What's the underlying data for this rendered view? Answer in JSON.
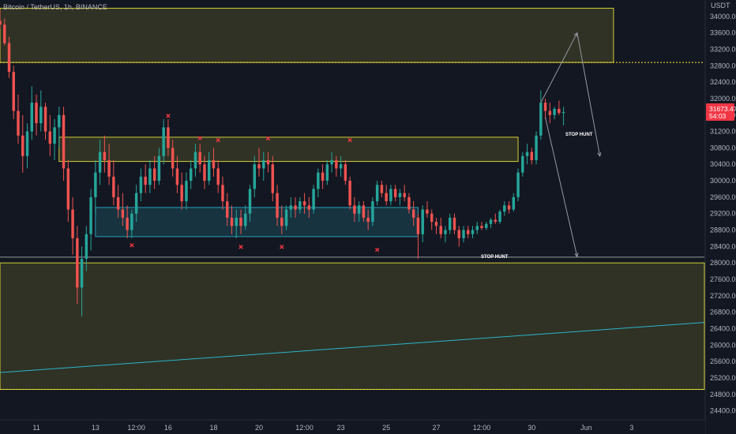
{
  "header": {
    "symbol_title": "Bitcoin / TetherUS, 1h, BINANCE",
    "currency": "USDT"
  },
  "price_badge": {
    "price": "31673.47",
    "countdown": "54:03",
    "color": "#f23645"
  },
  "colors": {
    "background": "#131722",
    "bull": "#26a69a",
    "bear": "#ef5350",
    "yellow_zone": "#f5eb3b",
    "cyan_zone": "#2ab5cc",
    "marker": "#f23645",
    "dashed_line": "#ffeb3b",
    "trendline": "#2ab5cc",
    "projection": "#9598a1",
    "axis_text": "#b2b5be"
  },
  "annotations": {
    "stop_hunt_top": "STOP HUNT",
    "stop_hunt_bottom": "STOP HUNT"
  },
  "chart_data": {
    "type": "candlestick",
    "title": "Bitcoin / TetherUS, 1h, BINANCE",
    "y_axis": {
      "unit": "USDT",
      "ticks": [
        34000,
        33600,
        33200,
        32800,
        32400,
        32000,
        31600,
        31200,
        30800,
        30400,
        30000,
        29600,
        29200,
        28800,
        28400,
        28000,
        27600,
        27200,
        26800,
        26400,
        26000,
        25600,
        25200,
        24800,
        24400
      ],
      "tick_labels": [
        "34000.00",
        "33600.00",
        "33200.00",
        "32800.00",
        "32400.00",
        "32000.00",
        "31600.00",
        "31200.00",
        "30800.00",
        "30400.00",
        "30000.00",
        "29600.00",
        "29200.00",
        "28800.00",
        "28400.00",
        "28000.00",
        "27600.00",
        "27200.00",
        "26800.00",
        "26400.00",
        "26000.00",
        "25600.00",
        "25200.00",
        "24800.00",
        "24400.00"
      ],
      "range": [
        24200,
        34400
      ]
    },
    "x_axis": {
      "tick_labels": [
        "11",
        "13",
        "12:00",
        "16",
        "18",
        "20",
        "12:00",
        "23",
        "25",
        "27",
        "12:00",
        "30",
        "Jun",
        "3"
      ],
      "ticks_t": [
        8,
        21,
        30,
        37,
        47,
        57,
        67,
        75,
        85,
        96,
        106,
        117,
        129,
        139
      ],
      "range_t": [
        0,
        155
      ]
    },
    "last_price": 31673.47,
    "zones": [
      {
        "kind": "yellow",
        "t0": 0,
        "t1": 135,
        "p_low": 32880,
        "p_high": 34200
      },
      {
        "kind": "yellow",
        "t0": 13,
        "t1": 114,
        "p_low": 30470,
        "p_high": 31060
      },
      {
        "kind": "cyan",
        "t0": 21,
        "t1": 92,
        "p_low": 28640,
        "p_high": 29350
      },
      {
        "kind": "yellow",
        "t0": 0,
        "t1": 155,
        "p_low": 24920,
        "p_high": 28000
      }
    ],
    "horizontal_levels": [
      {
        "price": 32880,
        "style": "dashed",
        "color": "yellow"
      },
      {
        "price": 24920,
        "style": "dashed",
        "color": "yellow"
      },
      {
        "price": 28140,
        "style": "solid",
        "color": "white"
      }
    ],
    "trendline": {
      "t0": 0,
      "p0": 25330,
      "t1": 155,
      "p1": 26550
    },
    "x_markers": [
      {
        "t": 37,
        "p": 31580
      },
      {
        "t": 44,
        "p": 31040
      },
      {
        "t": 48,
        "p": 30990
      },
      {
        "t": 59,
        "p": 31030
      },
      {
        "t": 77,
        "p": 30990
      },
      {
        "t": 29,
        "p": 28430
      },
      {
        "t": 53,
        "p": 28390
      },
      {
        "t": 62,
        "p": 28390
      },
      {
        "t": 83,
        "p": 28320
      }
    ],
    "projections": [
      {
        "from": [
          119,
          31900
        ],
        "to": [
          127,
          33600
        ]
      },
      {
        "from": [
          127,
          33600
        ],
        "to": [
          132,
          30600
        ]
      },
      {
        "from": [
          120,
          31540
        ],
        "to": [
          127,
          28150
        ]
      }
    ],
    "candles": [
      {
        "t": 0,
        "o": 33900,
        "h": 34150,
        "l": 33700,
        "c": 33800
      },
      {
        "t": 1,
        "o": 33800,
        "h": 33950,
        "l": 33300,
        "c": 33350
      },
      {
        "t": 2,
        "o": 33350,
        "h": 33500,
        "l": 32500,
        "c": 32650
      },
      {
        "t": 3,
        "o": 32650,
        "h": 32800,
        "l": 31500,
        "c": 31700
      },
      {
        "t": 4,
        "o": 31700,
        "h": 32100,
        "l": 30900,
        "c": 31100
      },
      {
        "t": 5,
        "o": 31100,
        "h": 31600,
        "l": 30200,
        "c": 30600
      },
      {
        "t": 6,
        "o": 30600,
        "h": 31400,
        "l": 30300,
        "c": 31200
      },
      {
        "t": 7,
        "o": 31200,
        "h": 32300,
        "l": 31000,
        "c": 31900
      },
      {
        "t": 8,
        "o": 31900,
        "h": 32100,
        "l": 31100,
        "c": 31400
      },
      {
        "t": 9,
        "o": 31400,
        "h": 32200,
        "l": 31200,
        "c": 31800
      },
      {
        "t": 10,
        "o": 31800,
        "h": 31900,
        "l": 31000,
        "c": 31200
      },
      {
        "t": 11,
        "o": 31200,
        "h": 31600,
        "l": 30600,
        "c": 30900
      },
      {
        "t": 12,
        "o": 30900,
        "h": 31500,
        "l": 30500,
        "c": 31300
      },
      {
        "t": 13,
        "o": 31300,
        "h": 31800,
        "l": 30800,
        "c": 31600
      },
      {
        "t": 14,
        "o": 31600,
        "h": 31800,
        "l": 30000,
        "c": 30300
      },
      {
        "t": 15,
        "o": 30300,
        "h": 30500,
        "l": 29000,
        "c": 29300
      },
      {
        "t": 16,
        "o": 29300,
        "h": 29600,
        "l": 28200,
        "c": 28600
      },
      {
        "t": 17,
        "o": 28600,
        "h": 28900,
        "l": 27000,
        "c": 27400
      },
      {
        "t": 18,
        "o": 27400,
        "h": 28400,
        "l": 26700,
        "c": 28100
      },
      {
        "t": 19,
        "o": 28100,
        "h": 28900,
        "l": 27800,
        "c": 28700
      },
      {
        "t": 20,
        "o": 28700,
        "h": 29800,
        "l": 28300,
        "c": 29600
      },
      {
        "t": 21,
        "o": 29600,
        "h": 30500,
        "l": 29200,
        "c": 30200
      },
      {
        "t": 22,
        "o": 30200,
        "h": 31000,
        "l": 29900,
        "c": 30700
      },
      {
        "t": 23,
        "o": 30700,
        "h": 31100,
        "l": 30200,
        "c": 30500
      },
      {
        "t": 24,
        "o": 30500,
        "h": 30900,
        "l": 29900,
        "c": 30100
      },
      {
        "t": 25,
        "o": 30100,
        "h": 30500,
        "l": 29400,
        "c": 29600
      },
      {
        "t": 26,
        "o": 29600,
        "h": 29900,
        "l": 29100,
        "c": 29300
      },
      {
        "t": 27,
        "o": 29300,
        "h": 29700,
        "l": 28900,
        "c": 29100
      },
      {
        "t": 28,
        "o": 29100,
        "h": 29400,
        "l": 28600,
        "c": 28800
      },
      {
        "t": 29,
        "o": 28800,
        "h": 29300,
        "l": 28600,
        "c": 29200
      },
      {
        "t": 30,
        "o": 29200,
        "h": 29900,
        "l": 29000,
        "c": 29700
      },
      {
        "t": 31,
        "o": 29700,
        "h": 30300,
        "l": 29500,
        "c": 30100
      },
      {
        "t": 32,
        "o": 30100,
        "h": 30400,
        "l": 29700,
        "c": 29900
      },
      {
        "t": 33,
        "o": 29900,
        "h": 30500,
        "l": 29700,
        "c": 30300
      },
      {
        "t": 34,
        "o": 30300,
        "h": 30600,
        "l": 29800,
        "c": 30000
      },
      {
        "t": 35,
        "o": 30000,
        "h": 30800,
        "l": 29900,
        "c": 30600
      },
      {
        "t": 36,
        "o": 30600,
        "h": 31500,
        "l": 30400,
        "c": 31300
      },
      {
        "t": 37,
        "o": 31300,
        "h": 31500,
        "l": 30600,
        "c": 30800
      },
      {
        "t": 38,
        "o": 30800,
        "h": 31000,
        "l": 30100,
        "c": 30300
      },
      {
        "t": 39,
        "o": 30300,
        "h": 30600,
        "l": 29700,
        "c": 29900
      },
      {
        "t": 40,
        "o": 29900,
        "h": 30200,
        "l": 29300,
        "c": 29500
      },
      {
        "t": 41,
        "o": 29500,
        "h": 30200,
        "l": 29300,
        "c": 30000
      },
      {
        "t": 42,
        "o": 30000,
        "h": 30500,
        "l": 29800,
        "c": 30300
      },
      {
        "t": 43,
        "o": 30300,
        "h": 30900,
        "l": 30100,
        "c": 30700
      },
      {
        "t": 44,
        "o": 30700,
        "h": 30900,
        "l": 30200,
        "c": 30400
      },
      {
        "t": 45,
        "o": 30400,
        "h": 30600,
        "l": 29800,
        "c": 30000
      },
      {
        "t": 46,
        "o": 30000,
        "h": 30700,
        "l": 29900,
        "c": 30500
      },
      {
        "t": 47,
        "o": 30500,
        "h": 30800,
        "l": 30100,
        "c": 30300
      },
      {
        "t": 48,
        "o": 30300,
        "h": 30500,
        "l": 29700,
        "c": 29900
      },
      {
        "t": 49,
        "o": 29900,
        "h": 30100,
        "l": 29300,
        "c": 29500
      },
      {
        "t": 50,
        "o": 29500,
        "h": 29700,
        "l": 28900,
        "c": 29100
      },
      {
        "t": 51,
        "o": 29100,
        "h": 29400,
        "l": 28700,
        "c": 28900
      },
      {
        "t": 52,
        "o": 28900,
        "h": 29300,
        "l": 28600,
        "c": 29100
      },
      {
        "t": 53,
        "o": 29100,
        "h": 29300,
        "l": 28700,
        "c": 28900
      },
      {
        "t": 54,
        "o": 28900,
        "h": 29400,
        "l": 28800,
        "c": 29200
      },
      {
        "t": 55,
        "o": 29200,
        "h": 29900,
        "l": 29000,
        "c": 29800
      },
      {
        "t": 56,
        "o": 29800,
        "h": 30600,
        "l": 29600,
        "c": 30400
      },
      {
        "t": 57,
        "o": 30400,
        "h": 30800,
        "l": 30100,
        "c": 30300
      },
      {
        "t": 58,
        "o": 30300,
        "h": 30700,
        "l": 30000,
        "c": 30500
      },
      {
        "t": 59,
        "o": 30500,
        "h": 30700,
        "l": 30200,
        "c": 30400
      },
      {
        "t": 60,
        "o": 30400,
        "h": 30600,
        "l": 29500,
        "c": 29700
      },
      {
        "t": 61,
        "o": 29700,
        "h": 29900,
        "l": 28900,
        "c": 29100
      },
      {
        "t": 62,
        "o": 29100,
        "h": 29400,
        "l": 28700,
        "c": 28900
      },
      {
        "t": 63,
        "o": 28900,
        "h": 29400,
        "l": 28800,
        "c": 29300
      },
      {
        "t": 64,
        "o": 29300,
        "h": 29600,
        "l": 29100,
        "c": 29400
      },
      {
        "t": 65,
        "o": 29400,
        "h": 29600,
        "l": 29100,
        "c": 29300
      },
      {
        "t": 66,
        "o": 29300,
        "h": 29600,
        "l": 29200,
        "c": 29500
      },
      {
        "t": 67,
        "o": 29500,
        "h": 29700,
        "l": 29200,
        "c": 29400
      },
      {
        "t": 68,
        "o": 29400,
        "h": 29600,
        "l": 29100,
        "c": 29300
      },
      {
        "t": 69,
        "o": 29300,
        "h": 29900,
        "l": 29200,
        "c": 29800
      },
      {
        "t": 70,
        "o": 29800,
        "h": 30300,
        "l": 29600,
        "c": 30200
      },
      {
        "t": 71,
        "o": 30200,
        "h": 30400,
        "l": 29800,
        "c": 30000
      },
      {
        "t": 72,
        "o": 30000,
        "h": 30500,
        "l": 29900,
        "c": 30400
      },
      {
        "t": 73,
        "o": 30400,
        "h": 30700,
        "l": 30200,
        "c": 30500
      },
      {
        "t": 74,
        "o": 30500,
        "h": 30600,
        "l": 30100,
        "c": 30300
      },
      {
        "t": 75,
        "o": 30300,
        "h": 30600,
        "l": 30100,
        "c": 30400
      },
      {
        "t": 76,
        "o": 30400,
        "h": 30500,
        "l": 29900,
        "c": 30000
      },
      {
        "t": 77,
        "o": 30000,
        "h": 30100,
        "l": 29300,
        "c": 29400
      },
      {
        "t": 78,
        "o": 29400,
        "h": 29600,
        "l": 29000,
        "c": 29200
      },
      {
        "t": 79,
        "o": 29200,
        "h": 29500,
        "l": 29000,
        "c": 29400
      },
      {
        "t": 80,
        "o": 29400,
        "h": 29500,
        "l": 29000,
        "c": 29100
      },
      {
        "t": 81,
        "o": 29100,
        "h": 29300,
        "l": 28800,
        "c": 29000
      },
      {
        "t": 82,
        "o": 29000,
        "h": 29600,
        "l": 28900,
        "c": 29500
      },
      {
        "t": 83,
        "o": 29500,
        "h": 30000,
        "l": 29400,
        "c": 29900
      },
      {
        "t": 84,
        "o": 29900,
        "h": 30000,
        "l": 29600,
        "c": 29700
      },
      {
        "t": 85,
        "o": 29700,
        "h": 29900,
        "l": 29400,
        "c": 29500
      },
      {
        "t": 86,
        "o": 29500,
        "h": 29900,
        "l": 29400,
        "c": 29800
      },
      {
        "t": 87,
        "o": 29800,
        "h": 29900,
        "l": 29500,
        "c": 29600
      },
      {
        "t": 88,
        "o": 29600,
        "h": 29800,
        "l": 29400,
        "c": 29700
      },
      {
        "t": 89,
        "o": 29700,
        "h": 29900,
        "l": 29500,
        "c": 29600
      },
      {
        "t": 90,
        "o": 29600,
        "h": 29700,
        "l": 29200,
        "c": 29300
      },
      {
        "t": 91,
        "o": 29300,
        "h": 29500,
        "l": 28900,
        "c": 29100
      },
      {
        "t": 92,
        "o": 29100,
        "h": 29200,
        "l": 28100,
        "c": 28700
      },
      {
        "t": 93,
        "o": 28700,
        "h": 29400,
        "l": 28500,
        "c": 29300
      },
      {
        "t": 94,
        "o": 29300,
        "h": 29500,
        "l": 29100,
        "c": 29200
      },
      {
        "t": 95,
        "o": 29200,
        "h": 29300,
        "l": 28800,
        "c": 29000
      },
      {
        "t": 96,
        "o": 29000,
        "h": 29100,
        "l": 28700,
        "c": 28900
      },
      {
        "t": 97,
        "o": 28900,
        "h": 29100,
        "l": 28600,
        "c": 28700
      },
      {
        "t": 98,
        "o": 28700,
        "h": 28900,
        "l": 28500,
        "c": 28800
      },
      {
        "t": 99,
        "o": 28800,
        "h": 29200,
        "l": 28700,
        "c": 29100
      },
      {
        "t": 100,
        "o": 29100,
        "h": 29200,
        "l": 28700,
        "c": 28800
      },
      {
        "t": 101,
        "o": 28800,
        "h": 28900,
        "l": 28400,
        "c": 28600
      },
      {
        "t": 102,
        "o": 28600,
        "h": 28900,
        "l": 28500,
        "c": 28800
      },
      {
        "t": 103,
        "o": 28800,
        "h": 28900,
        "l": 28600,
        "c": 28700
      },
      {
        "t": 104,
        "o": 28700,
        "h": 28900,
        "l": 28600,
        "c": 28800
      },
      {
        "t": 105,
        "o": 28800,
        "h": 29000,
        "l": 28700,
        "c": 28900
      },
      {
        "t": 106,
        "o": 28900,
        "h": 29000,
        "l": 28800,
        "c": 28850
      },
      {
        "t": 107,
        "o": 28850,
        "h": 29000,
        "l": 28800,
        "c": 28950
      },
      {
        "t": 108,
        "o": 28950,
        "h": 29100,
        "l": 28850,
        "c": 29050
      },
      {
        "t": 109,
        "o": 29050,
        "h": 29200,
        "l": 28950,
        "c": 29000
      },
      {
        "t": 110,
        "o": 29000,
        "h": 29300,
        "l": 28950,
        "c": 29250
      },
      {
        "t": 111,
        "o": 29250,
        "h": 29500,
        "l": 29150,
        "c": 29400
      },
      {
        "t": 112,
        "o": 29400,
        "h": 29500,
        "l": 29200,
        "c": 29300
      },
      {
        "t": 113,
        "o": 29300,
        "h": 29700,
        "l": 29250,
        "c": 29600
      },
      {
        "t": 114,
        "o": 29600,
        "h": 30300,
        "l": 29500,
        "c": 30200
      },
      {
        "t": 115,
        "o": 30200,
        "h": 30700,
        "l": 30100,
        "c": 30600
      },
      {
        "t": 116,
        "o": 30600,
        "h": 30900,
        "l": 30400,
        "c": 30700
      },
      {
        "t": 117,
        "o": 30700,
        "h": 30800,
        "l": 30400,
        "c": 30500
      },
      {
        "t": 118,
        "o": 30500,
        "h": 31200,
        "l": 30400,
        "c": 31100
      },
      {
        "t": 119,
        "o": 31100,
        "h": 32200,
        "l": 31000,
        "c": 31900
      },
      {
        "t": 120,
        "o": 31900,
        "h": 32000,
        "l": 31500,
        "c": 31700
      },
      {
        "t": 121,
        "o": 31700,
        "h": 31900,
        "l": 31400,
        "c": 31600
      },
      {
        "t": 122,
        "o": 31600,
        "h": 31800,
        "l": 31500,
        "c": 31750
      },
      {
        "t": 123,
        "o": 31750,
        "h": 31950,
        "l": 31600,
        "c": 31650
      },
      {
        "t": 124,
        "o": 31650,
        "h": 31800,
        "l": 31350,
        "c": 31673
      }
    ]
  }
}
